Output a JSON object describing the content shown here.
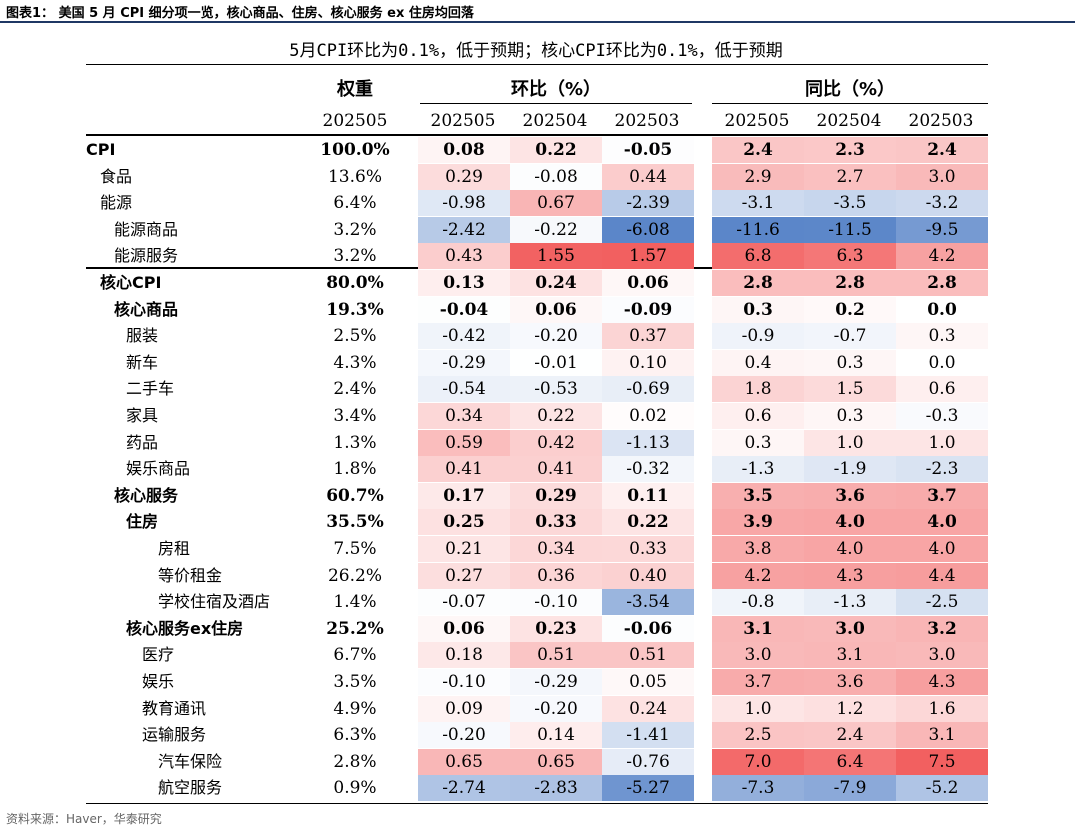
{
  "figure_title": "图表1： 美国 5 月 CPI 细分项一览，核心商品、住房、核心服务 ex 住房均回落",
  "subtitle": "5月CPI环比为0.1%，低于预期；核心CPI环比为0.1%，低于预期",
  "headers": {
    "weight": "权重",
    "mom": "环比（%）",
    "yoy": "同比（%）",
    "weight_date": "202505",
    "mom_dates": [
      "202505",
      "202504",
      "202503"
    ],
    "yoy_dates": [
      "202505",
      "202504",
      "202503"
    ]
  },
  "rows": [
    {
      "name": "CPI",
      "indent": 0,
      "bold": true,
      "weight": "100.0%",
      "mom": [
        "0.08",
        "0.22",
        "-0.05"
      ],
      "yoy": [
        "2.4",
        "2.3",
        "2.4"
      ]
    },
    {
      "name": "食品",
      "indent": 1,
      "bold": false,
      "weight": "13.6%",
      "mom": [
        "0.29",
        "-0.08",
        "0.44"
      ],
      "yoy": [
        "2.9",
        "2.7",
        "3.0"
      ]
    },
    {
      "name": "能源",
      "indent": 1,
      "bold": false,
      "weight": "6.4%",
      "mom": [
        "-0.98",
        "0.67",
        "-2.39"
      ],
      "yoy": [
        "-3.1",
        "-3.5",
        "-3.2"
      ]
    },
    {
      "name": "能源商品",
      "indent": 2,
      "bold": false,
      "weight": "3.2%",
      "mom": [
        "-2.42",
        "-0.22",
        "-6.08"
      ],
      "yoy": [
        "-11.6",
        "-11.5",
        "-9.5"
      ]
    },
    {
      "name": "能源服务",
      "indent": 2,
      "bold": false,
      "weight": "3.2%",
      "mom": [
        "0.43",
        "1.55",
        "1.57"
      ],
      "yoy": [
        "6.8",
        "6.3",
        "4.2"
      ]
    },
    {
      "name": "核心CPI",
      "indent": 1,
      "bold": true,
      "weight": "80.0%",
      "mom": [
        "0.13",
        "0.24",
        "0.06"
      ],
      "yoy": [
        "2.8",
        "2.8",
        "2.8"
      ]
    },
    {
      "name": "核心商品",
      "indent": 2,
      "bold": true,
      "weight": "19.3%",
      "mom": [
        "-0.04",
        "0.06",
        "-0.09"
      ],
      "yoy": [
        "0.3",
        "0.2",
        "0.0"
      ]
    },
    {
      "name": "服装",
      "indent": 3,
      "bold": false,
      "weight": "2.5%",
      "mom": [
        "-0.42",
        "-0.20",
        "0.37"
      ],
      "yoy": [
        "-0.9",
        "-0.7",
        "0.3"
      ]
    },
    {
      "name": "新车",
      "indent": 3,
      "bold": false,
      "weight": "4.3%",
      "mom": [
        "-0.29",
        "-0.01",
        "0.10"
      ],
      "yoy": [
        "0.4",
        "0.3",
        "0.0"
      ]
    },
    {
      "name": "二手车",
      "indent": 3,
      "bold": false,
      "weight": "2.4%",
      "mom": [
        "-0.54",
        "-0.53",
        "-0.69"
      ],
      "yoy": [
        "1.8",
        "1.5",
        "0.6"
      ]
    },
    {
      "name": "家具",
      "indent": 3,
      "bold": false,
      "weight": "3.4%",
      "mom": [
        "0.34",
        "0.22",
        "0.02"
      ],
      "yoy": [
        "0.6",
        "0.3",
        "-0.3"
      ]
    },
    {
      "name": "药品",
      "indent": 3,
      "bold": false,
      "weight": "1.3%",
      "mom": [
        "0.59",
        "0.42",
        "-1.13"
      ],
      "yoy": [
        "0.3",
        "1.0",
        "1.0"
      ]
    },
    {
      "name": "娱乐商品",
      "indent": 3,
      "bold": false,
      "weight": "1.8%",
      "mom": [
        "0.41",
        "0.41",
        "-0.32"
      ],
      "yoy": [
        "-1.3",
        "-1.9",
        "-2.3"
      ]
    },
    {
      "name": "核心服务",
      "indent": 2,
      "bold": true,
      "weight": "60.7%",
      "mom": [
        "0.17",
        "0.29",
        "0.11"
      ],
      "yoy": [
        "3.5",
        "3.6",
        "3.7"
      ]
    },
    {
      "name": "住房",
      "indent": 3,
      "bold": true,
      "weight": "35.5%",
      "mom": [
        "0.25",
        "0.33",
        "0.22"
      ],
      "yoy": [
        "3.9",
        "4.0",
        "4.0"
      ]
    },
    {
      "name": "房租",
      "indent": 5,
      "bold": false,
      "weight": "7.5%",
      "mom": [
        "0.21",
        "0.34",
        "0.33"
      ],
      "yoy": [
        "3.8",
        "4.0",
        "4.0"
      ]
    },
    {
      "name": "等价租金",
      "indent": 5,
      "bold": false,
      "weight": "26.2%",
      "mom": [
        "0.27",
        "0.36",
        "0.40"
      ],
      "yoy": [
        "4.2",
        "4.3",
        "4.4"
      ]
    },
    {
      "name": "学校住宿及酒店",
      "indent": 5,
      "bold": false,
      "weight": "1.4%",
      "mom": [
        "-0.07",
        "-0.10",
        "-3.54"
      ],
      "yoy": [
        "-0.8",
        "-1.3",
        "-2.5"
      ]
    },
    {
      "name": "核心服务ex住房",
      "indent": 3,
      "bold": true,
      "weight": "25.2%",
      "mom": [
        "0.06",
        "0.23",
        "-0.06"
      ],
      "yoy": [
        "3.1",
        "3.0",
        "3.2"
      ]
    },
    {
      "name": "医疗",
      "indent": 4,
      "bold": false,
      "weight": "6.7%",
      "mom": [
        "0.18",
        "0.51",
        "0.51"
      ],
      "yoy": [
        "3.0",
        "3.1",
        "3.0"
      ]
    },
    {
      "name": "娱乐",
      "indent": 4,
      "bold": false,
      "weight": "3.5%",
      "mom": [
        "-0.10",
        "-0.29",
        "0.05"
      ],
      "yoy": [
        "3.7",
        "3.6",
        "4.3"
      ]
    },
    {
      "name": "教育通讯",
      "indent": 4,
      "bold": false,
      "weight": "4.9%",
      "mom": [
        "0.09",
        "-0.20",
        "0.24"
      ],
      "yoy": [
        "1.0",
        "1.2",
        "1.6"
      ]
    },
    {
      "name": "运输服务",
      "indent": 4,
      "bold": false,
      "weight": "6.3%",
      "mom": [
        "-0.20",
        "0.14",
        "-1.41"
      ],
      "yoy": [
        "2.5",
        "2.4",
        "3.1"
      ]
    },
    {
      "name": "汽车保险",
      "indent": 5,
      "bold": false,
      "weight": "2.8%",
      "mom": [
        "0.65",
        "0.65",
        "-0.76"
      ],
      "yoy": [
        "7.0",
        "6.4",
        "7.5"
      ]
    },
    {
      "name": "航空服务",
      "indent": 5,
      "bold": false,
      "weight": "0.9%",
      "mom": [
        "-2.74",
        "-2.83",
        "-5.27"
      ],
      "yoy": [
        "-7.3",
        "-7.9",
        "-5.2"
      ]
    }
  ],
  "heat_colors": {
    "negative": "#5b86c9",
    "positive": "#f26060",
    "neutral": "#ffffff"
  },
  "footer": "资料来源：Haver，华泰研究"
}
